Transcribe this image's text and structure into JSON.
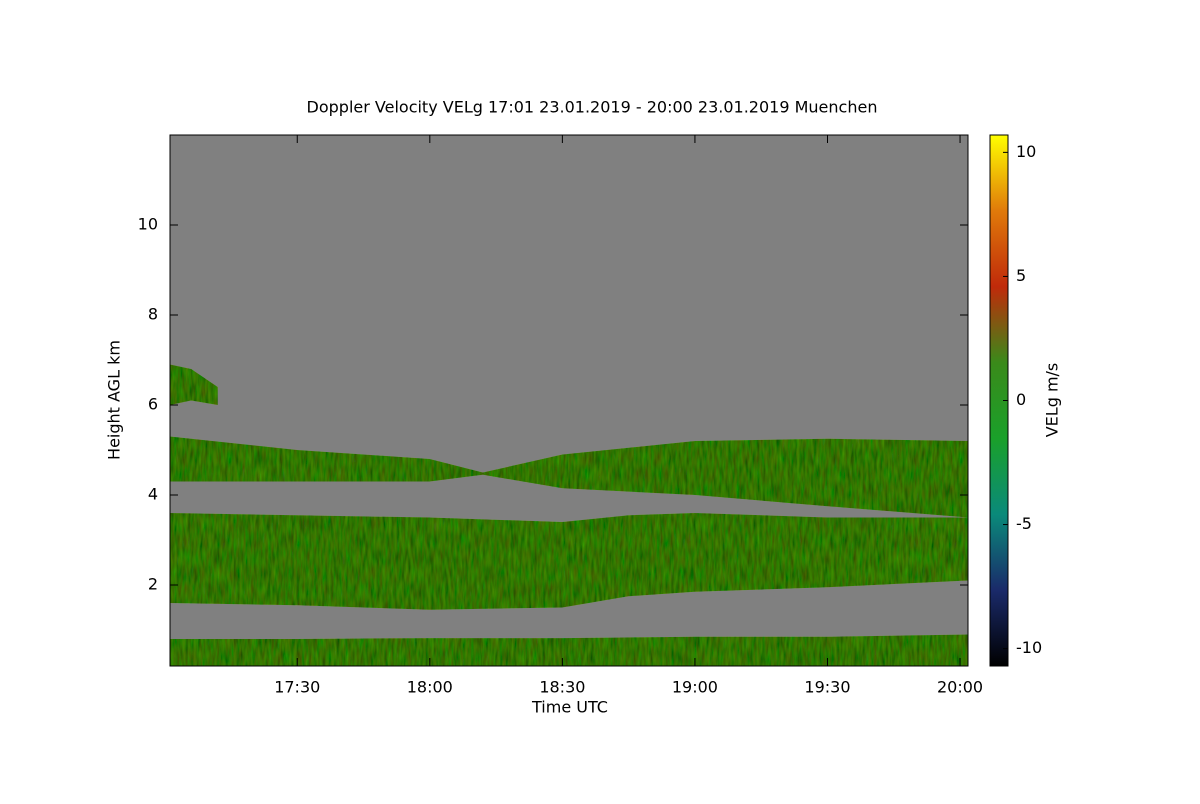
{
  "chart_data": {
    "type": "heatmap",
    "title": "Doppler Velocity VELg   17:01 23.01.2019 - 20:00 23.01.2019 Muenchen",
    "x_label": "Time UTC",
    "y_label": "Height AGL km",
    "colorbar_label": "VELg m/s",
    "background_color": "#808080",
    "layer_color": "#4f8a1e",
    "xlim": [
      17.02,
      20.03
    ],
    "xticks": [
      {
        "value": 17.5,
        "label": "17:30"
      },
      {
        "value": 18,
        "label": "18:00"
      },
      {
        "value": 18.5,
        "label": "18:30"
      },
      {
        "value": 19,
        "label": "19:00"
      },
      {
        "value": 19.5,
        "label": "19:30"
      },
      {
        "value": 20,
        "label": "20:00"
      }
    ],
    "ylim": [
      0.2,
      12
    ],
    "yticks": [
      2,
      4,
      6,
      8,
      10
    ],
    "zlim": [
      -10.7,
      10.7
    ],
    "zticks": [
      -10,
      -5,
      0,
      5,
      10
    ],
    "colormap": [
      "#000000",
      "#1a2a6a",
      "#0a8a7a",
      "#1aa02a",
      "#3a8a1a",
      "#c02a0a",
      "#e07a0a",
      "#ffff00"
    ],
    "layers": [
      {
        "x": [
          17.02,
          17.5,
          18,
          18.5,
          19,
          19.5,
          20.03
        ],
        "top": [
          0.8,
          0.8,
          0.82,
          0.82,
          0.85,
          0.85,
          0.9
        ],
        "bottom": [
          0.2,
          0.2,
          0.2,
          0.2,
          0.2,
          0.2,
          0.2
        ]
      },
      {
        "x": [
          17.02,
          17.5,
          18,
          18.5,
          18.75,
          19,
          19.5,
          20.03
        ],
        "top": [
          3.6,
          3.55,
          3.5,
          3.4,
          3.55,
          3.6,
          3.5,
          3.5
        ],
        "bottom": [
          1.6,
          1.55,
          1.45,
          1.5,
          1.75,
          1.85,
          1.95,
          2.1
        ]
      },
      {
        "x": [
          17.02,
          17.5,
          18,
          18.2,
          18.5,
          19,
          19.5,
          20.03
        ],
        "top": [
          5.3,
          5.0,
          4.8,
          4.5,
          4.9,
          5.2,
          5.25,
          5.2
        ],
        "bottom": [
          4.3,
          4.3,
          4.3,
          4.45,
          4.15,
          4.0,
          3.75,
          3.5
        ]
      },
      {
        "x": [
          17.02,
          17.1,
          17.2
        ],
        "top": [
          6.9,
          6.8,
          6.4
        ],
        "bottom": [
          6.0,
          6.1,
          6.0
        ]
      }
    ]
  }
}
